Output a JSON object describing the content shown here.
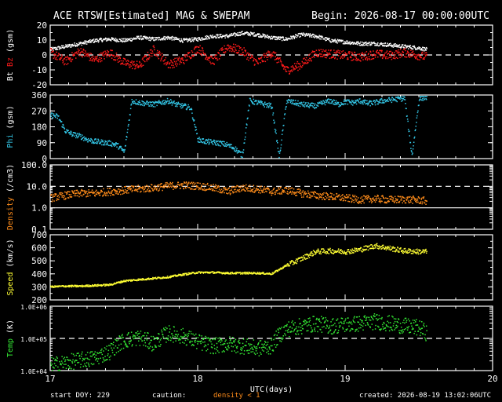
{
  "header": {
    "title": "ACE RTSW[Estimated] MAG & SWEPAM",
    "begin": "Begin: 2026-08-17 00:00:00UTC"
  },
  "footer": {
    "start_doy": "start DOY: 229",
    "caution_label": "caution:",
    "caution_value": "density < 1",
    "created": "created: 2026-08-19 13:02:06UTC"
  },
  "colors": {
    "bt": "#ffffff",
    "bz": "#ff1a1a",
    "phi": "#33c6e6",
    "density": "#ff8c1a",
    "speed": "#ffff33",
    "temp": "#33e633",
    "background": "#000000",
    "axes": "#ffffff"
  },
  "chart_data": [
    {
      "type": "scatter",
      "name": "mag",
      "ylabel_parts": [
        "Bt",
        "Bz",
        "(gsm)"
      ],
      "xlim": [
        17,
        20
      ],
      "ylim": [
        -20,
        20
      ],
      "yticks": [
        "20",
        "10",
        "0",
        "-10",
        "-20"
      ],
      "ytick_values": [
        20,
        10,
        0,
        -10,
        -20
      ],
      "dashed_y": [
        0
      ],
      "series": [
        {
          "name": "Bt",
          "x": [
            17.0,
            17.1,
            17.2,
            17.3,
            17.4,
            17.5,
            17.6,
            17.7,
            17.8,
            17.9,
            18.0,
            18.1,
            18.2,
            18.3,
            18.4,
            18.5,
            18.6,
            18.7,
            18.8,
            18.9,
            19.0,
            19.1,
            19.2,
            19.3,
            19.4,
            19.5,
            19.55
          ],
          "y": [
            4,
            6,
            8,
            10,
            11,
            10,
            12,
            11,
            12,
            10,
            11,
            13,
            13,
            15,
            14,
            12,
            11,
            14,
            13,
            10,
            9,
            8,
            8,
            7,
            6,
            5,
            4
          ]
        },
        {
          "name": "Bz",
          "x": [
            17.0,
            17.1,
            17.2,
            17.3,
            17.4,
            17.5,
            17.6,
            17.7,
            17.8,
            17.9,
            18.0,
            18.1,
            18.2,
            18.3,
            18.4,
            18.5,
            18.6,
            18.7,
            18.8,
            18.9,
            19.0,
            19.1,
            19.2,
            19.3,
            19.4,
            19.5,
            19.55
          ],
          "y": [
            2,
            -4,
            3,
            -3,
            2,
            -5,
            -7,
            4,
            -6,
            -3,
            5,
            -4,
            6,
            3,
            -5,
            2,
            -10,
            -6,
            2,
            1,
            0,
            -1,
            1,
            0,
            2,
            0,
            -1
          ]
        }
      ]
    },
    {
      "type": "scatter",
      "name": "phi",
      "ylabel_parts": [
        "Phi",
        "(gsm)"
      ],
      "xlim": [
        17,
        20
      ],
      "ylim": [
        0,
        360
      ],
      "yticks": [
        "360",
        "270",
        "180",
        "90",
        "0"
      ],
      "ytick_values": [
        360,
        270,
        180,
        90,
        0
      ],
      "series": [
        {
          "name": "Phi",
          "x": [
            17.0,
            17.05,
            17.1,
            17.15,
            17.2,
            17.25,
            17.3,
            17.35,
            17.4,
            17.45,
            17.5,
            17.55,
            17.6,
            17.65,
            17.7,
            17.75,
            17.8,
            17.85,
            17.9,
            17.95,
            18.0,
            18.05,
            18.1,
            18.15,
            18.2,
            18.25,
            18.3,
            18.35,
            18.4,
            18.45,
            18.5,
            18.55,
            18.6,
            18.65,
            18.7,
            18.75,
            18.8,
            18.85,
            18.9,
            18.95,
            19.0,
            19.05,
            19.1,
            19.15,
            19.2,
            19.25,
            19.3,
            19.35,
            19.4,
            19.45,
            19.5,
            19.55
          ],
          "y": [
            250,
            240,
            160,
            140,
            130,
            110,
            100,
            95,
            90,
            80,
            40,
            330,
            320,
            315,
            310,
            320,
            330,
            310,
            300,
            290,
            110,
            100,
            95,
            90,
            80,
            60,
            20,
            330,
            320,
            310,
            300,
            10,
            330,
            320,
            310,
            305,
            300,
            320,
            330,
            310,
            325,
            320,
            330,
            315,
            320,
            330,
            335,
            340,
            345,
            20,
            345,
            350
          ]
        }
      ]
    },
    {
      "type": "scatter",
      "name": "density",
      "ylabel_parts": [
        "Density",
        "(/cm3)"
      ],
      "xlim": [
        17,
        20
      ],
      "ylim": [
        0.1,
        100
      ],
      "yscale": "log",
      "yticks": [
        "100.0",
        "10.0",
        "1.0",
        "0.1"
      ],
      "ytick_values": [
        100,
        10,
        1,
        0.1
      ],
      "dashed_y": [
        10
      ],
      "solid_y": [
        1
      ],
      "series": [
        {
          "name": "Density",
          "x": [
            17.0,
            17.1,
            17.2,
            17.3,
            17.4,
            17.5,
            17.6,
            17.7,
            17.8,
            17.9,
            18.0,
            18.1,
            18.2,
            18.3,
            18.4,
            18.5,
            18.6,
            18.7,
            18.8,
            18.9,
            19.0,
            19.1,
            19.2,
            19.3,
            19.4,
            19.5,
            19.55
          ],
          "y": [
            3,
            4,
            5,
            5,
            6,
            7,
            8,
            9,
            11,
            12,
            11,
            9,
            6,
            9,
            8,
            6,
            7,
            5,
            4,
            3.5,
            3,
            2.5,
            2.8,
            2.5,
            2.6,
            2.4,
            2.2
          ]
        }
      ]
    },
    {
      "type": "scatter",
      "name": "speed",
      "ylabel_parts": [
        "Speed",
        "(km/s)"
      ],
      "xlim": [
        17,
        20
      ],
      "ylim": [
        200,
        700
      ],
      "yticks": [
        "700",
        "600",
        "500",
        "400",
        "300",
        "200"
      ],
      "ytick_values": [
        700,
        600,
        500,
        400,
        300,
        200
      ],
      "series": [
        {
          "name": "Speed",
          "x": [
            17.0,
            17.1,
            17.2,
            17.3,
            17.4,
            17.5,
            17.6,
            17.7,
            17.8,
            17.9,
            18.0,
            18.1,
            18.2,
            18.3,
            18.4,
            18.5,
            18.6,
            18.7,
            18.8,
            18.9,
            19.0,
            19.1,
            19.2,
            19.3,
            19.4,
            19.5,
            19.55
          ],
          "y": [
            305,
            310,
            310,
            315,
            320,
            350,
            360,
            370,
            380,
            400,
            415,
            415,
            410,
            410,
            410,
            405,
            470,
            520,
            575,
            580,
            575,
            590,
            620,
            600,
            580,
            575,
            575
          ]
        }
      ]
    },
    {
      "type": "scatter",
      "name": "temp",
      "ylabel_parts": [
        "Temp",
        "(K)"
      ],
      "xlim": [
        17,
        20
      ],
      "ylim": [
        10000,
        1000000
      ],
      "yscale": "log",
      "yticks": [
        "1.0E+06",
        "1.0E+05",
        "1.0E+04"
      ],
      "ytick_values": [
        1000000,
        100000,
        10000
      ],
      "dashed_y": [
        100000
      ],
      "xticks": [
        "17",
        "18",
        "19",
        "20"
      ],
      "xtick_values": [
        17,
        18,
        19,
        20
      ],
      "xlabel": "UTC(days)",
      "series": [
        {
          "name": "Temp",
          "x": [
            17.0,
            17.1,
            17.2,
            17.3,
            17.4,
            17.5,
            17.6,
            17.7,
            17.8,
            17.9,
            18.0,
            18.1,
            18.2,
            18.3,
            18.4,
            18.5,
            18.6,
            18.7,
            18.8,
            18.9,
            19.0,
            19.1,
            19.2,
            19.3,
            19.4,
            19.5,
            19.55
          ],
          "y": [
            15000,
            18000,
            22000,
            25000,
            40000,
            90000,
            110000,
            70000,
            150000,
            120000,
            80000,
            60000,
            70000,
            60000,
            50000,
            60000,
            200000,
            250000,
            300000,
            250000,
            280000,
            300000,
            350000,
            300000,
            250000,
            220000,
            150000
          ]
        }
      ]
    }
  ]
}
